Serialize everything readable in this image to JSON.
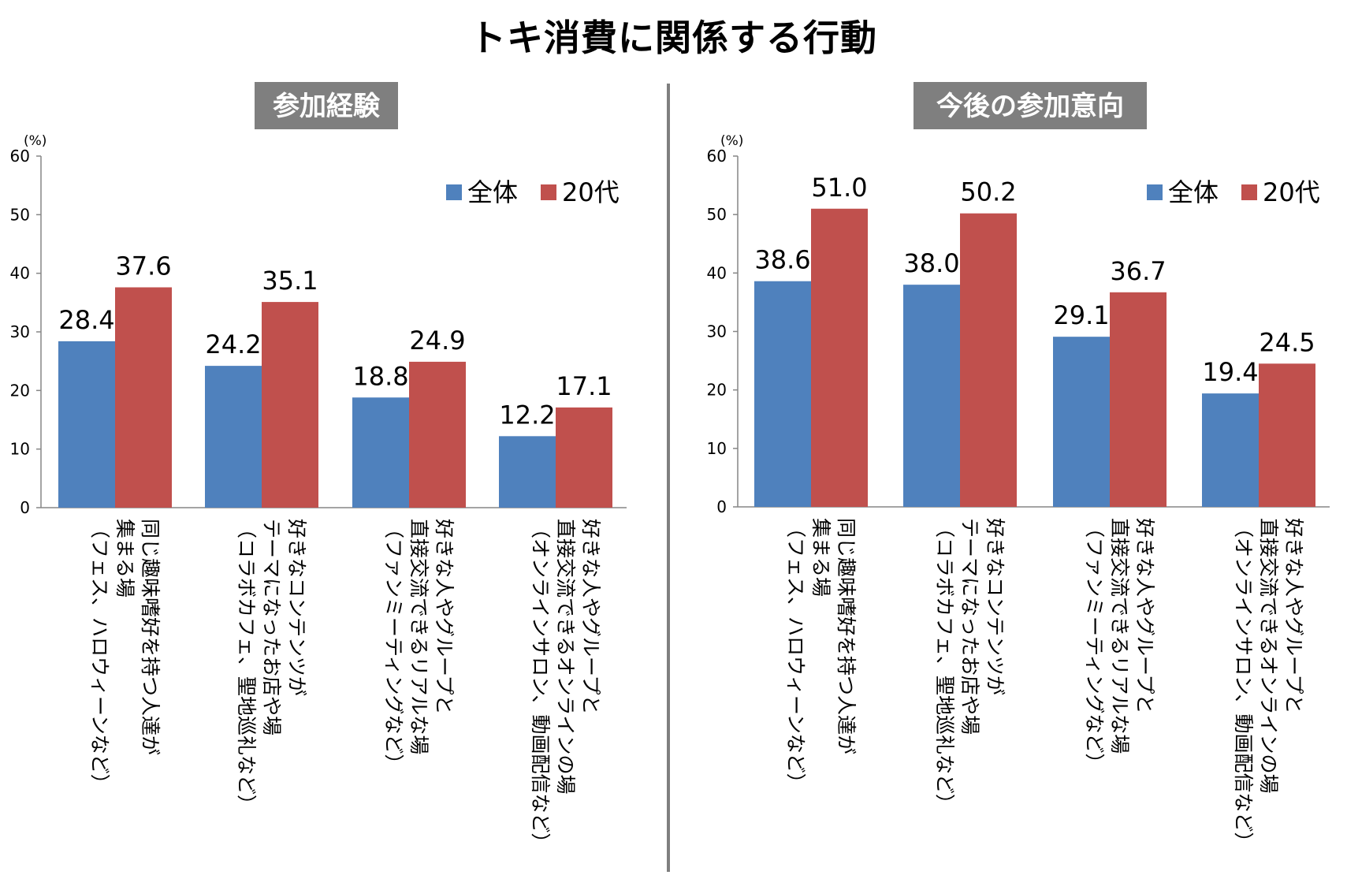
{
  "title": "トキ消費に関係する行動",
  "colors": {
    "all": "#4f81bd",
    "twenties": "#c0504d",
    "badge": "#7f7f7f",
    "divider": "#7f7f7f"
  },
  "chart_data": [
    {
      "type": "bar",
      "title": "参加経験",
      "ylabel": "(%)",
      "ylim": [
        0,
        60
      ],
      "yticks": [
        0,
        10,
        20,
        30,
        40,
        50,
        60
      ],
      "legend_position": "top-right",
      "categories": [
        [
          "同じ趣味嗜好を持つ人達が",
          "集まる場",
          "（フェス、ハロウィーンなど）"
        ],
        [
          "好きなコンテンツが",
          "テーマになったお店や場",
          "（コラボカフェ、聖地巡礼など）"
        ],
        [
          "好きな人やグループと",
          "直接交流できるリアルな場",
          "（ファンミーティングなど）"
        ],
        [
          "好きな人やグループと",
          "直接交流できるオンラインの場",
          "（オンラインサロン、動画配信など）"
        ]
      ],
      "series": [
        {
          "name": "全体",
          "values": [
            28.4,
            24.2,
            18.8,
            12.2
          ]
        },
        {
          "name": "20代",
          "values": [
            37.6,
            35.1,
            24.9,
            17.1
          ]
        }
      ]
    },
    {
      "type": "bar",
      "title": "今後の参加意向",
      "ylabel": "(%)",
      "ylim": [
        0,
        60
      ],
      "yticks": [
        0,
        10,
        20,
        30,
        40,
        50,
        60
      ],
      "legend_position": "top-right",
      "categories": [
        [
          "同じ趣味嗜好を持つ人達が",
          "集まる場",
          "（フェス、ハロウィーンなど）"
        ],
        [
          "好きなコンテンツが",
          "テーマになったお店や場",
          "（コラボカフェ、聖地巡礼など）"
        ],
        [
          "好きな人やグループと",
          "直接交流できるリアルな場",
          "（ファンミーティングなど）"
        ],
        [
          "好きな人やグループと",
          "直接交流できるオンラインの場",
          "（オンラインサロン、動画配信など）"
        ]
      ],
      "series": [
        {
          "name": "全体",
          "values": [
            38.6,
            38.0,
            29.1,
            19.4
          ]
        },
        {
          "name": "20代",
          "values": [
            51.0,
            50.2,
            36.7,
            24.5
          ]
        }
      ]
    }
  ]
}
